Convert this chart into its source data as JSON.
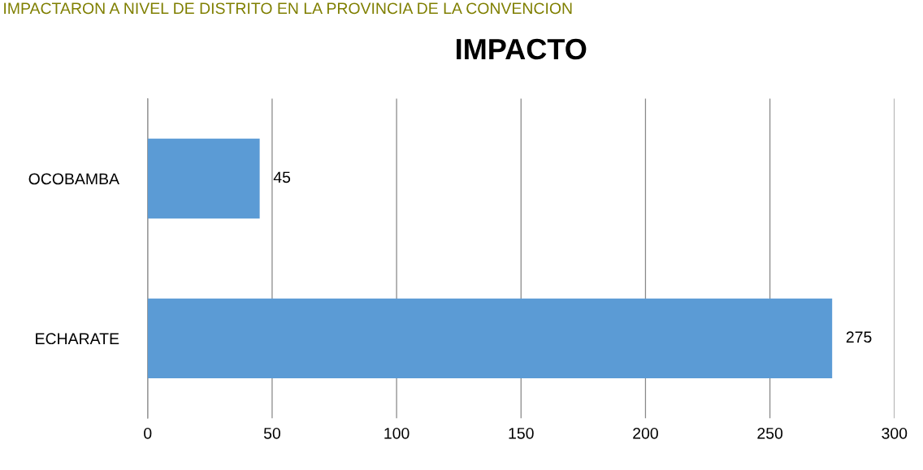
{
  "chart_data": {
    "type": "bar",
    "orientation": "horizontal",
    "title": "IMPACTO",
    "annotations": [
      "IMPACTARON A NIVEL DE DISTRITO EN LA PROVINCIA DE LA CONVENCION"
    ],
    "categories": [
      "OCOBAMBA",
      "ECHARATE"
    ],
    "values": [
      45,
      275
    ],
    "color": "#5b9bd5",
    "xlim": [
      0,
      300
    ],
    "xticks": [
      0,
      50,
      100,
      150,
      200,
      250,
      300
    ],
    "grid": "x",
    "data_labels": true,
    "legend": false
  }
}
